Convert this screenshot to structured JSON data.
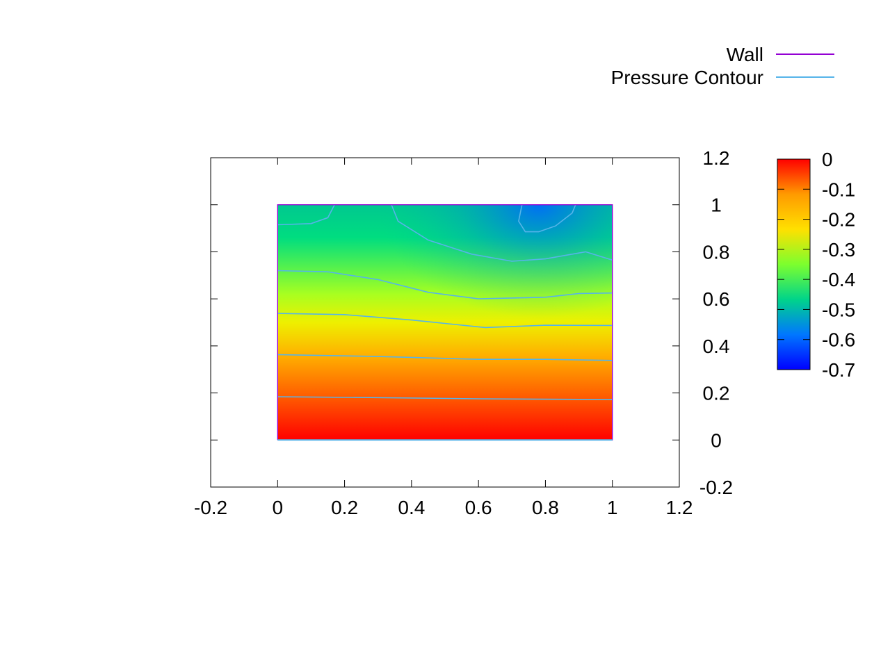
{
  "chart_data": {
    "type": "heatmap",
    "title": "",
    "xlabel": "",
    "ylabel": "",
    "xlim": [
      -0.2,
      1.2
    ],
    "ylim": [
      -0.2,
      1.2
    ],
    "x_ticks": [
      "-0.2",
      "0",
      "0.2",
      "0.4",
      "0.6",
      "0.8",
      "1",
      "1.2"
    ],
    "y_ticks": [
      "-0.2",
      "0",
      "0.2",
      "0.4",
      "0.6",
      "0.8",
      "1",
      "1.2"
    ],
    "y_axis_side": "right",
    "grid": false,
    "legend_position": "top-right",
    "domain": {
      "x": [
        0,
        1
      ],
      "y": [
        0,
        1
      ]
    },
    "colorbar": {
      "range": [
        -0.7,
        0
      ],
      "ticks": [
        "0",
        "-0.1",
        "-0.2",
        "-0.3",
        "-0.4",
        "-0.5",
        "-0.6",
        "-0.7"
      ],
      "palette": [
        "#0000ff",
        "#0077ff",
        "#00d48a",
        "#7cff2e",
        "#ffe000",
        "#ff9a00",
        "#ff0000"
      ]
    },
    "series": [
      {
        "name": "Wall",
        "color": "#9400d3",
        "points": [
          [
            0,
            0
          ],
          [
            1,
            0
          ],
          [
            1,
            1
          ],
          [
            0,
            1
          ],
          [
            0,
            0
          ]
        ]
      },
      {
        "name": "Pressure Contour",
        "color": "#56b4e9",
        "lines": [
          [
            [
              0,
              0.184
            ],
            [
              0.3,
              0.18
            ],
            [
              0.6,
              0.175
            ],
            [
              1,
              0.172
            ]
          ],
          [
            [
              0,
              0.363
            ],
            [
              0.3,
              0.355
            ],
            [
              0.6,
              0.343
            ],
            [
              0.8,
              0.343
            ],
            [
              1,
              0.338
            ]
          ],
          [
            [
              0,
              0.538
            ],
            [
              0.2,
              0.533
            ],
            [
              0.4,
              0.51
            ],
            [
              0.62,
              0.478
            ],
            [
              0.8,
              0.488
            ],
            [
              1,
              0.487
            ]
          ],
          [
            [
              0,
              0.72
            ],
            [
              0.15,
              0.715
            ],
            [
              0.3,
              0.682
            ],
            [
              0.45,
              0.628
            ],
            [
              0.6,
              0.6
            ],
            [
              0.8,
              0.607
            ],
            [
              0.9,
              0.623
            ],
            [
              1,
              0.625
            ]
          ],
          [
            [
              0.34,
              1
            ],
            [
              0.36,
              0.93
            ],
            [
              0.45,
              0.85
            ],
            [
              0.58,
              0.79
            ],
            [
              0.7,
              0.76
            ],
            [
              0.8,
              0.77
            ],
            [
              0.92,
              0.8
            ],
            [
              1,
              0.765
            ]
          ],
          [
            [
              0,
              0.915
            ],
            [
              0.1,
              0.92
            ],
            [
              0.15,
              0.945
            ],
            [
              0.17,
              1
            ]
          ],
          [
            [
              0.73,
              1
            ],
            [
              0.72,
              0.93
            ],
            [
              0.74,
              0.885
            ],
            [
              0.78,
              0.885
            ],
            [
              0.83,
              0.91
            ],
            [
              0.88,
              0.965
            ],
            [
              0.89,
              1
            ]
          ]
        ]
      }
    ]
  }
}
